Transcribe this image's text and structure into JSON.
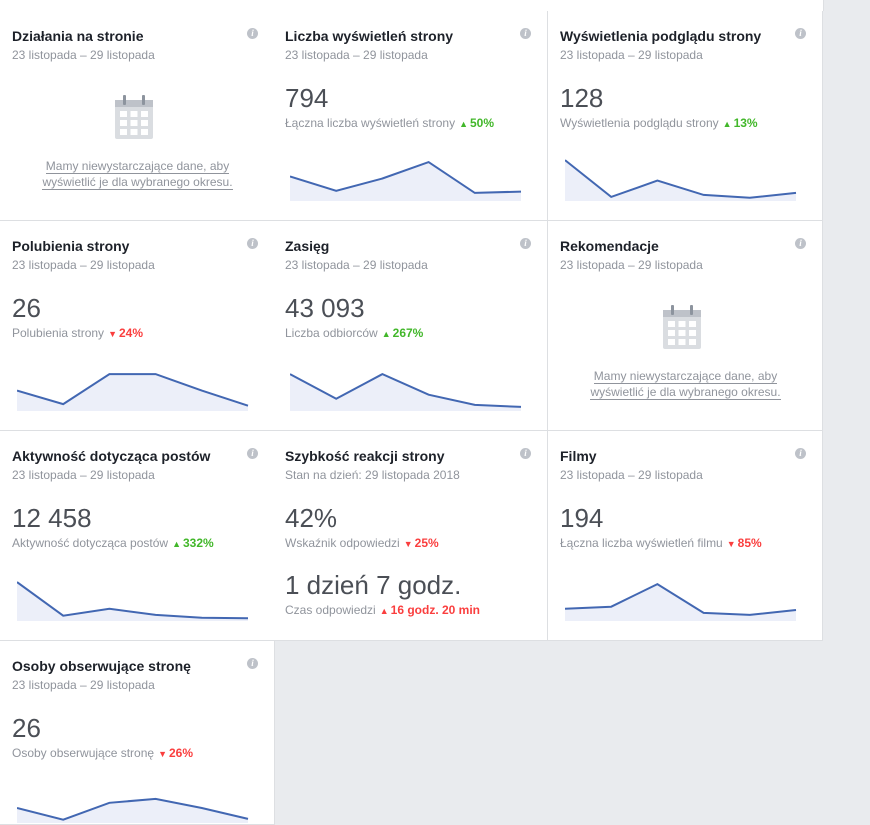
{
  "cards": {
    "page_actions": {
      "title": "Działania na stronie",
      "date": "23 listopada – 29 listopada",
      "no_data_line1": "Mamy niewystarczające dane, aby",
      "no_data_line2": "wyświetlić je dla wybranego okresu.",
      "calendar_icon": "calendar-icon"
    },
    "page_views": {
      "title": "Liczba wyświetleń strony",
      "date": "23 listopada – 29 listopada",
      "value": "794",
      "metric_label": "Łączna liczba wyświetleń strony",
      "delta": "50%",
      "trend": "up",
      "spark": [
        0.45,
        0.8,
        0.5,
        0.1,
        0.85,
        0.82
      ]
    },
    "page_previews": {
      "title": "Wyświetlenia podglądu strony",
      "date": "23 listopada – 29 listopada",
      "value": "128",
      "metric_label": "Wyświetlenia podglądu strony",
      "delta": "13%",
      "trend": "up",
      "spark": [
        0.05,
        0.95,
        0.55,
        0.9,
        0.97,
        0.85
      ]
    },
    "page_likes": {
      "title": "Polubienia strony",
      "date": "23 listopada – 29 listopada",
      "value": "26",
      "metric_label": "Polubienia strony",
      "delta": "24%",
      "trend": "down",
      "spark": [
        0.55,
        0.88,
        0.15,
        0.15,
        0.55,
        0.92
      ]
    },
    "reach": {
      "title": "Zasięg",
      "date": "23 listopada – 29 listopada",
      "value": "43 093",
      "metric_label": "Liczba odbiorców",
      "delta": "267%",
      "trend": "up",
      "spark": [
        0.15,
        0.75,
        0.15,
        0.65,
        0.9,
        0.95
      ]
    },
    "recommendations": {
      "title": "Rekomendacje",
      "date": "23 listopada – 29 listopada",
      "no_data_line1": "Mamy niewystarczające dane, aby",
      "no_data_line2": "wyświetlić je dla wybranego okresu.",
      "calendar_icon": "calendar-icon"
    },
    "post_engagement": {
      "title": "Aktywność dotycząca postów",
      "date": "23 listopada – 29 listopada",
      "value": "12 458",
      "metric_label": "Aktywność dotycząca postów",
      "delta": "332%",
      "trend": "up",
      "spark": [
        0.1,
        0.92,
        0.75,
        0.9,
        0.97,
        0.98
      ]
    },
    "response_speed": {
      "title": "Szybkość reakcji strony",
      "date": "Stan na dzień: 29 listopada 2018",
      "value": "42%",
      "metric_label": "Wskaźnik odpowiedzi",
      "delta": "25%",
      "trend": "down",
      "value2": "1 dzień 7 godz.",
      "metric_label2": "Czas odpowiedzi",
      "delta2": "16 godz. 20 min",
      "trend2": "up"
    },
    "videos": {
      "title": "Filmy",
      "date": "23 listopada – 29 listopada",
      "value": "194",
      "metric_label": "Łączna liczba wyświetleń filmu",
      "delta": "85%",
      "trend": "down",
      "spark": [
        0.75,
        0.7,
        0.15,
        0.85,
        0.9,
        0.78
      ]
    },
    "followers": {
      "title": "Osoby obserwujące stronę",
      "date": "23 listopada – 29 listopada",
      "value": "26",
      "metric_label": "Osoby obserwujące stronę",
      "delta": "26%",
      "trend": "down",
      "spark": [
        0.5,
        0.95,
        0.3,
        0.15,
        0.5,
        0.92
      ]
    }
  },
  "colors": {
    "line": "#4267b2",
    "fill": "#eceff9",
    "up": "#42b72a",
    "down": "#fa3e3e"
  }
}
